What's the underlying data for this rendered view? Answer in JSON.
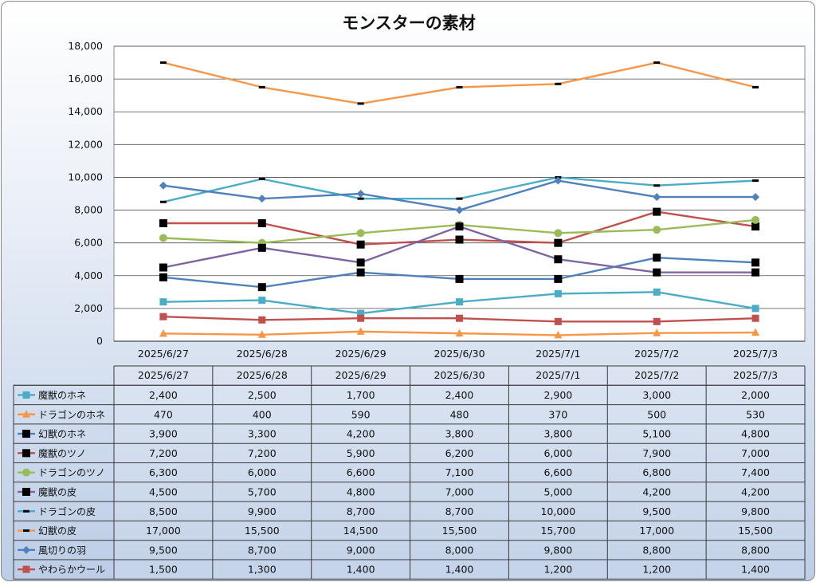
{
  "chart_data": {
    "type": "line",
    "title": "モンスターの素材",
    "xlabel": "",
    "ylabel": "",
    "ylim": [
      0,
      18000
    ],
    "y_ticks": [
      0,
      2000,
      4000,
      6000,
      8000,
      10000,
      12000,
      14000,
      16000,
      18000
    ],
    "y_tick_labels": [
      "0",
      "2,000",
      "4,000",
      "6,000",
      "8,000",
      "10,000",
      "12,000",
      "14,000",
      "16,000",
      "18,000"
    ],
    "grid": true,
    "legend": "data-table",
    "categories": [
      "2025/6/27",
      "2025/6/28",
      "2025/6/29",
      "2025/6/30",
      "2025/7/1",
      "2025/7/2",
      "2025/7/3"
    ],
    "series": [
      {
        "name": "魔獣のホネ",
        "color": "#4bacc6",
        "marker": "square",
        "values": [
          2400,
          2500,
          1700,
          2400,
          2900,
          3000,
          2000
        ],
        "labels": [
          "2,400",
          "2,500",
          "1,700",
          "2,400",
          "2,900",
          "3,000",
          "2,000"
        ]
      },
      {
        "name": "ドラゴンのホネ",
        "color": "#f79646",
        "marker": "triangle",
        "values": [
          470,
          400,
          590,
          480,
          370,
          500,
          530
        ],
        "labels": [
          "470",
          "400",
          "590",
          "480",
          "370",
          "500",
          "530"
        ]
      },
      {
        "name": "幻獣のホネ",
        "color": "#4f81bd",
        "marker": "blacksquare",
        "values": [
          3900,
          3300,
          4200,
          3800,
          3800,
          5100,
          4800
        ],
        "labels": [
          "3,900",
          "3,300",
          "4,200",
          "3,800",
          "3,800",
          "5,100",
          "4,800"
        ]
      },
      {
        "name": "魔獣のツノ",
        "color": "#c0504d",
        "marker": "blacksquare",
        "values": [
          7200,
          7200,
          5900,
          6200,
          6000,
          7900,
          7000
        ],
        "labels": [
          "7,200",
          "7,200",
          "5,900",
          "6,200",
          "6,000",
          "7,900",
          "7,000"
        ]
      },
      {
        "name": "ドラゴンのツノ",
        "color": "#9bbb59",
        "marker": "circle",
        "values": [
          6300,
          6000,
          6600,
          7100,
          6600,
          6800,
          7400
        ],
        "labels": [
          "6,300",
          "6,000",
          "6,600",
          "7,100",
          "6,600",
          "6,800",
          "7,400"
        ]
      },
      {
        "name": "魔獣の皮",
        "color": "#8064a2",
        "marker": "blacksquare",
        "values": [
          4500,
          5700,
          4800,
          7000,
          5000,
          4200,
          4200
        ],
        "labels": [
          "4,500",
          "5,700",
          "4,800",
          "7,000",
          "5,000",
          "4,200",
          "4,200"
        ]
      },
      {
        "name": "ドラゴンの皮",
        "color": "#4bacc6",
        "marker": "dash",
        "values": [
          8500,
          9900,
          8700,
          8700,
          10000,
          9500,
          9800
        ],
        "labels": [
          "8,500",
          "9,900",
          "8,700",
          "8,700",
          "10,000",
          "9,500",
          "9,800"
        ]
      },
      {
        "name": "幻獣の皮",
        "color": "#f79646",
        "marker": "dash",
        "values": [
          17000,
          15500,
          14500,
          15500,
          15700,
          17000,
          15500
        ],
        "labels": [
          "17,000",
          "15,500",
          "14,500",
          "15,500",
          "15,700",
          "17,000",
          "15,500"
        ]
      },
      {
        "name": "風切りの羽",
        "color": "#4f81bd",
        "marker": "diamond",
        "values": [
          9500,
          8700,
          9000,
          8000,
          9800,
          8800,
          8800
        ],
        "labels": [
          "9,500",
          "8,700",
          "9,000",
          "8,000",
          "9,800",
          "8,800",
          "8,800"
        ]
      },
      {
        "name": "やわらかウール",
        "color": "#c0504d",
        "marker": "square",
        "values": [
          1500,
          1300,
          1400,
          1400,
          1200,
          1200,
          1400
        ],
        "labels": [
          "1,500",
          "1,300",
          "1,400",
          "1,400",
          "1,200",
          "1,200",
          "1,400"
        ]
      }
    ]
  }
}
